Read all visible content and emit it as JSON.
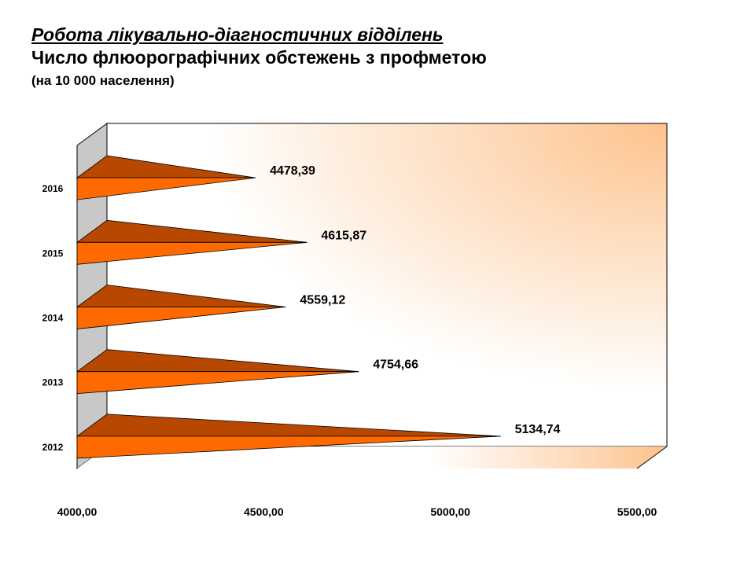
{
  "colors": {
    "bar_light": "#ff6a00",
    "bar_dark": "#b84800",
    "wall_gradient_end": "#fdc38e",
    "side_wall": "#c8c8c8"
  },
  "chart_data": {
    "type": "bar",
    "orientation": "horizontal",
    "style": "3d-cone",
    "title": "Робота лікувально-діагностичних відділень",
    "subtitle": "Число флюорографічних обстежень з профметою",
    "note": "(на 10 000 населення)",
    "categories": [
      "2012",
      "2013",
      "2014",
      "2015",
      "2016"
    ],
    "values": [
      5134.74,
      4754.66,
      4559.12,
      4615.87,
      4478.39
    ],
    "value_labels": [
      "5134,74",
      "4754,66",
      "4559,12",
      "4615,87",
      "4478,39"
    ],
    "xlim": [
      4000,
      5500
    ],
    "xticks": [
      4000,
      4500,
      5000,
      5500
    ],
    "xtick_labels": [
      "4000,00",
      "4500,00",
      "5000,00",
      "5500,00"
    ],
    "grid": false,
    "legend": "none"
  }
}
